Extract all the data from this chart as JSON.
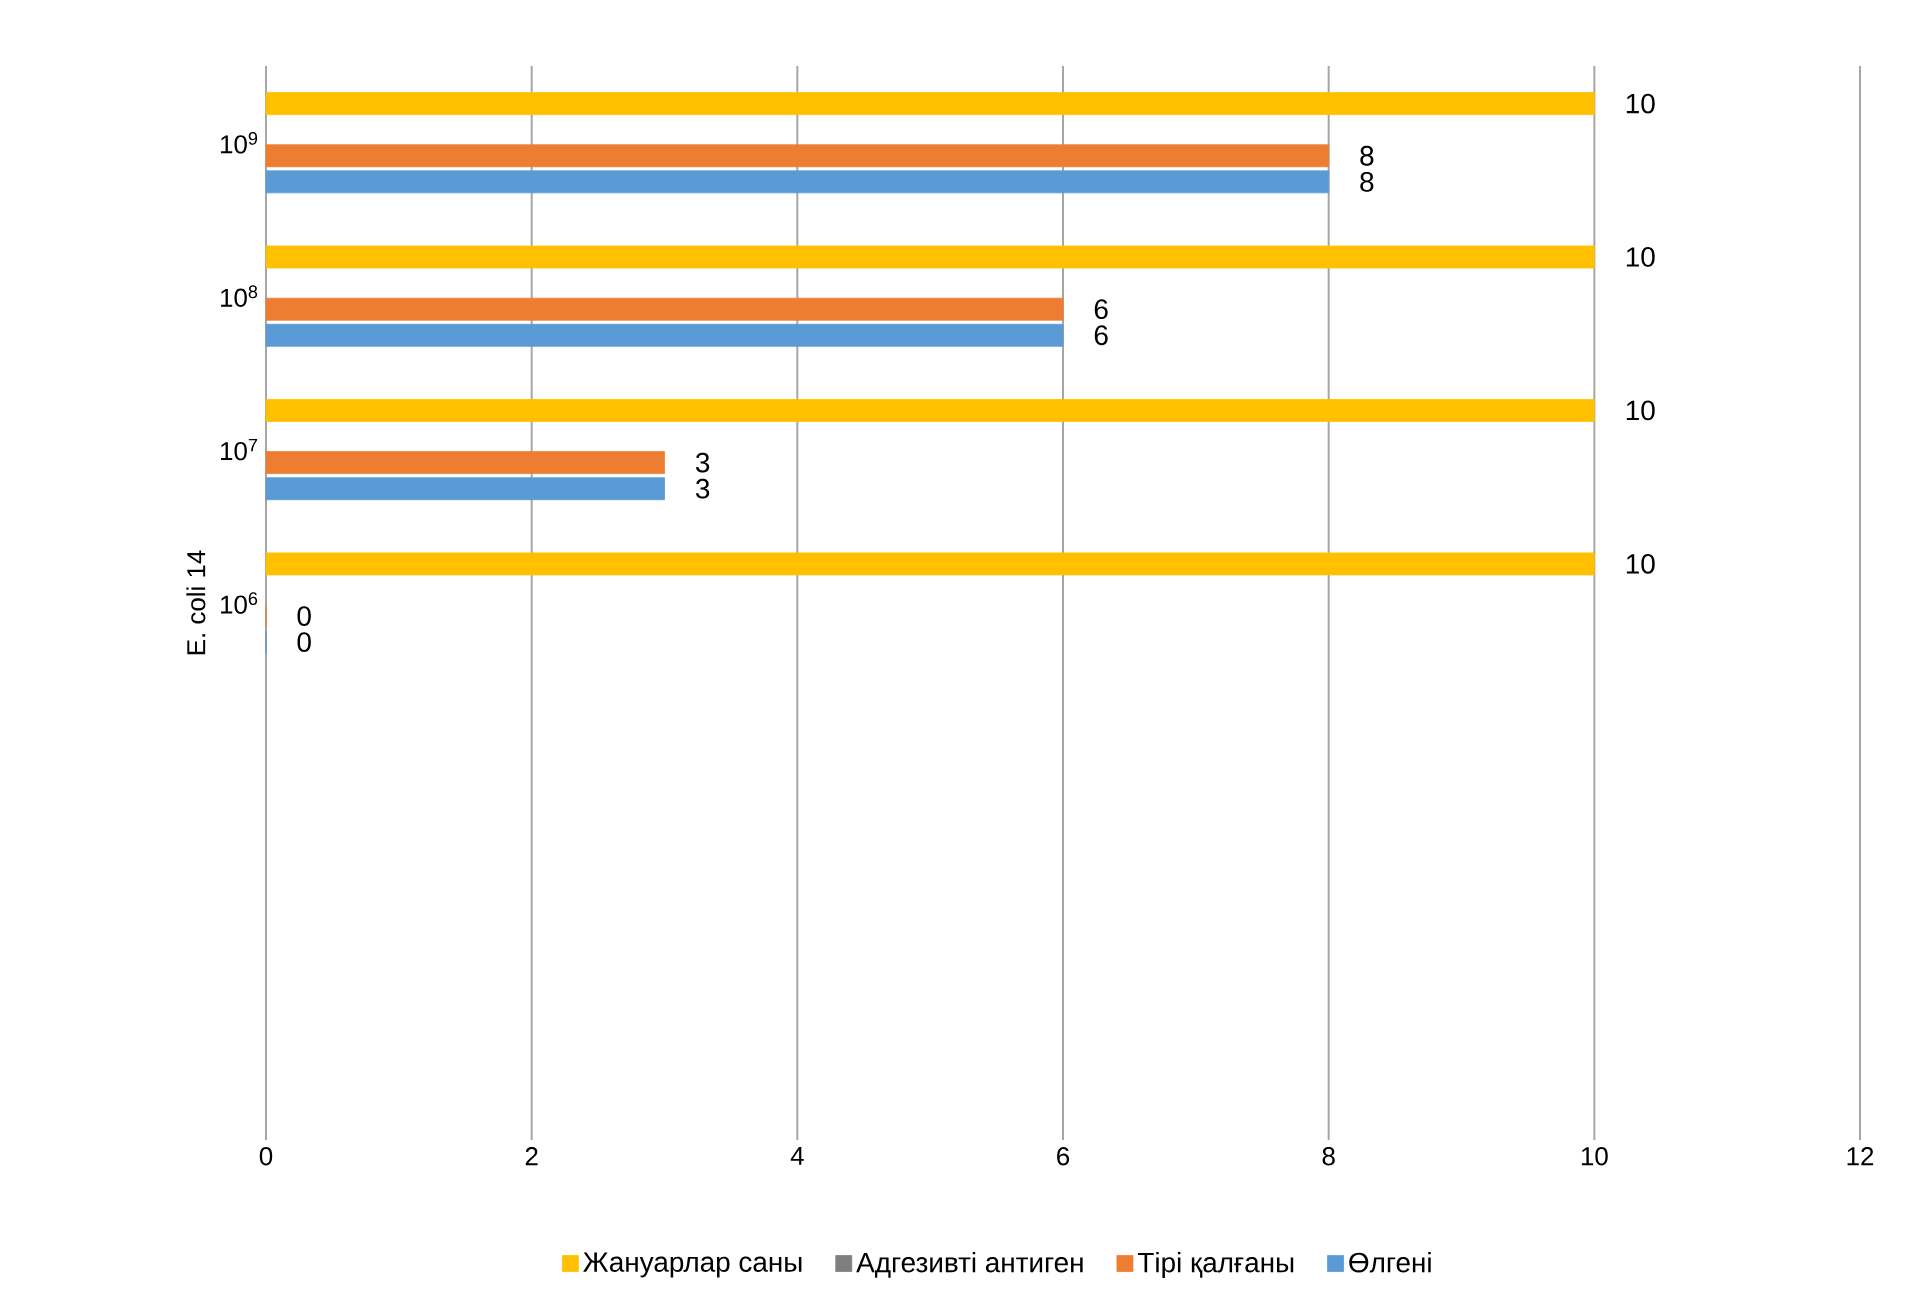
{
  "chart_data": {
    "type": "bar",
    "orientation": "horizontal",
    "ylabel": "E. coli 14",
    "categories": [
      "10$^{9}$",
      "10$^{8}$",
      "10$^{7}$",
      "10$^{6}$",
      null,
      null,
      null
    ],
    "series": [
      {
        "name": "Жануарлар саны",
        "color": "#ffc000",
        "values": [
          10,
          10,
          10,
          10,
          null,
          null,
          null
        ]
      },
      {
        "name": "Адгезивті антиген",
        "color": "#7f7f7f",
        "values": [
          null,
          null,
          null,
          null,
          null,
          null,
          null
        ]
      },
      {
        "name": "Тірі қалғаны",
        "color": "#ed7d31",
        "values": [
          8,
          6,
          3,
          0,
          null,
          null,
          null
        ]
      },
      {
        "name": "Өлгені",
        "color": "#5b9bd5",
        "values": [
          8,
          6,
          3,
          0,
          null,
          null,
          null
        ]
      }
    ],
    "xlim": [
      0,
      12
    ],
    "xticks": [
      0,
      2,
      4,
      6,
      8,
      10,
      12
    ],
    "grid": "x",
    "legend": "bottom",
    "data_labels": true
  }
}
